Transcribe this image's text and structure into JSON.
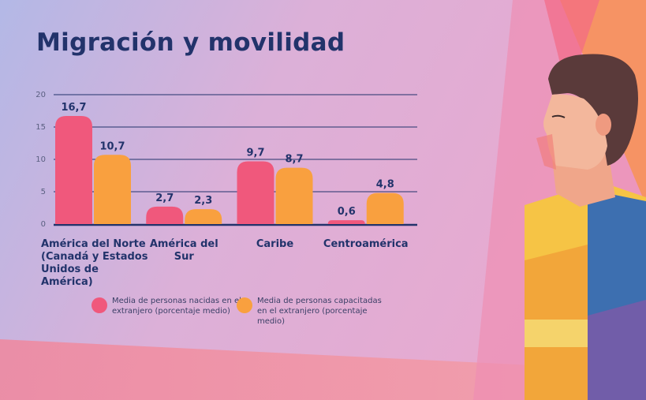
{
  "page": {
    "title": "Migración y movilidad"
  },
  "colors": {
    "series1": "#f0587c",
    "series2": "#f9a03f",
    "text": "#22336b",
    "grid": "#22336b"
  },
  "chart_data": {
    "type": "bar",
    "categories": [
      "América del Norte (Canadá y Estados Unidos de América)",
      "América del Sur",
      "Caribe",
      "Centroamérica"
    ],
    "series": [
      {
        "name": "Media de personas nacidas en el extranjero (porcentaje medio)",
        "values": [
          16.7,
          2.7,
          9.7,
          0.6
        ],
        "labels": [
          "16,7",
          "2,7",
          "9,7",
          "0,6"
        ]
      },
      {
        "name": "Media de personas capacitadas en el extranjero (porcentaje medio)",
        "values": [
          10.7,
          2.3,
          8.7,
          4.8
        ],
        "labels": [
          "10,7",
          "2,3",
          "8,7",
          "4,8"
        ]
      }
    ],
    "yticks": [
      "0",
      "5",
      "10",
      "15",
      "20"
    ],
    "ylim": [
      0,
      20
    ],
    "grid": true,
    "legend": "bottom"
  },
  "legend": [
    {
      "text": "Media de personas nacidas en el extranjero (porcentaje medio)"
    },
    {
      "text": "Media de personas capacitadas en el extranjero (porcentaje medio)"
    }
  ]
}
